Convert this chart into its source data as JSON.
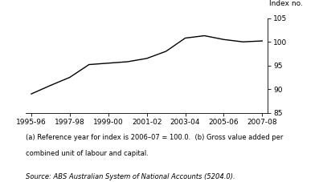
{
  "x_labels": [
    "1995-96",
    "1997-98",
    "1999-00",
    "2001-02",
    "2003-04",
    "2005-06",
    "2007-08"
  ],
  "x_tick_positions": [
    0,
    2,
    4,
    6,
    8,
    10,
    12
  ],
  "x_vals": [
    0,
    1,
    2,
    3,
    4,
    5,
    6,
    7,
    8,
    9,
    10,
    11,
    12
  ],
  "y_vals": [
    89.0,
    90.8,
    92.5,
    95.2,
    95.5,
    95.8,
    96.5,
    98.0,
    100.8,
    101.3,
    100.5,
    100.0,
    100.2
  ],
  "ylim": [
    85,
    105
  ],
  "yticks": [
    85,
    90,
    95,
    100,
    105
  ],
  "ylabel": "Index no.",
  "line_color": "#000000",
  "line_width": 1.0,
  "footnote1": "(a) Reference year for index is 2006–07 = 100.0.  (b) Gross value added per",
  "footnote2": "combined unit of labour and capital.",
  "source": "Source: ABS Australian System of National Accounts (5204.0).",
  "bg_color": "#ffffff",
  "tick_fontsize": 6.5,
  "footnote_fontsize": 6.0,
  "source_fontsize": 6.0,
  "ylabel_fontsize": 6.5
}
